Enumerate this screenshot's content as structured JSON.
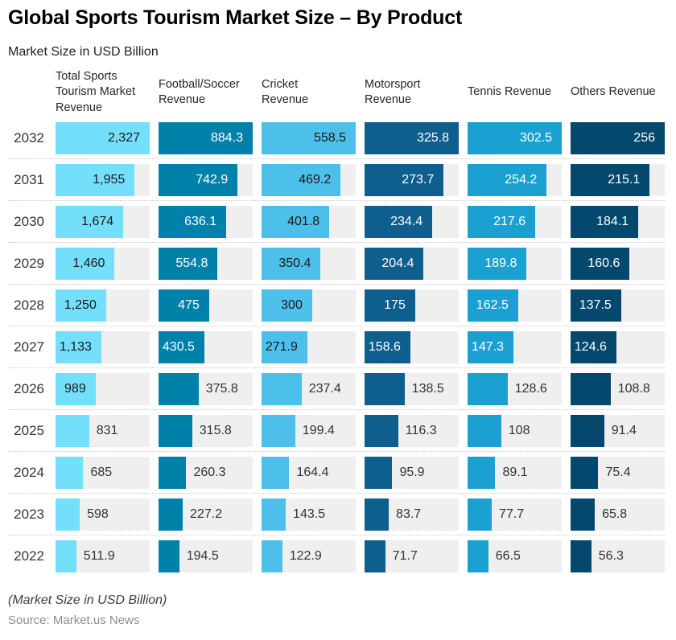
{
  "title": "Global Sports Tourism Market Size – By Product",
  "subtitle": "Market Size in USD Billion",
  "footer_note": "(Market Size in USD Billion)",
  "source": "Source: Market.us News",
  "ui_colors": {
    "track_background": "#efefef",
    "row_separator": "#c9c9c9",
    "outside_label_text": "#333333",
    "year_text": "#333333"
  },
  "chart_data": {
    "type": "bar",
    "orientation": "horizontal",
    "unit": "USD Billion",
    "grid": "off",
    "years": [
      "2032",
      "2031",
      "2030",
      "2029",
      "2028",
      "2027",
      "2026",
      "2025",
      "2024",
      "2023",
      "2022"
    ],
    "series": [
      {
        "name": "Total Sports Tourism Market Revenue",
        "color": "#74dffb",
        "label_color_inside": "#1a1a1a",
        "values": [
          2327,
          1955,
          1674,
          1460,
          1250,
          1133,
          989,
          831,
          685,
          598,
          511.9
        ],
        "labels": [
          "2,327",
          "1,955",
          "1,674",
          "1,460",
          "1,250",
          "1,133",
          "989",
          "831",
          "685",
          "598",
          "511.9"
        ]
      },
      {
        "name": "Football/Soccer Revenue",
        "color": "#0081a9",
        "label_color_inside": "#ffffff",
        "values": [
          884.3,
          742.9,
          636.1,
          554.8,
          475,
          430.5,
          375.8,
          315.8,
          260.3,
          227.2,
          194.5
        ],
        "labels": [
          "884.3",
          "742.9",
          "636.1",
          "554.8",
          "475",
          "430.5",
          "375.8",
          "315.8",
          "260.3",
          "227.2",
          "194.5"
        ]
      },
      {
        "name": "Cricket Revenue",
        "color": "#4dbfeb",
        "label_color_inside": "#1a1a1a",
        "values": [
          558.5,
          469.2,
          401.8,
          350.4,
          300,
          271.9,
          237.4,
          199.4,
          164.4,
          143.5,
          122.9
        ],
        "labels": [
          "558.5",
          "469.2",
          "401.8",
          "350.4",
          "300",
          "271.9",
          "237.4",
          "199.4",
          "164.4",
          "143.5",
          "122.9"
        ]
      },
      {
        "name": "Motorsport Revenue",
        "color": "#0e5f8d",
        "label_color_inside": "#ffffff",
        "values": [
          325.8,
          273.7,
          234.4,
          204.4,
          175,
          158.6,
          138.5,
          116.3,
          95.9,
          83.7,
          71.7
        ],
        "labels": [
          "325.8",
          "273.7",
          "234.4",
          "204.4",
          "175",
          "158.6",
          "138.5",
          "116.3",
          "95.9",
          "83.7",
          "71.7"
        ]
      },
      {
        "name": "Tennis Revenue",
        "color": "#1ba1d1",
        "label_color_inside": "#ffffff",
        "values": [
          302.5,
          254.2,
          217.6,
          189.8,
          162.5,
          147.3,
          128.6,
          108,
          89.1,
          77.7,
          66.5
        ],
        "labels": [
          "302.5",
          "254.2",
          "217.6",
          "189.8",
          "162.5",
          "147.3",
          "128.6",
          "108",
          "89.1",
          "77.7",
          "66.5"
        ]
      },
      {
        "name": "Others Revenue",
        "color": "#04486e",
        "label_color_inside": "#ffffff",
        "values": [
          256,
          215.1,
          184.1,
          160.6,
          137.5,
          124.6,
          108.8,
          91.4,
          75.4,
          65.8,
          56.3
        ],
        "labels": [
          "256",
          "215.1",
          "184.1",
          "160.6",
          "137.5",
          "124.6",
          "108.8",
          "91.4",
          "75.4",
          "65.8",
          "56.3"
        ]
      }
    ]
  }
}
